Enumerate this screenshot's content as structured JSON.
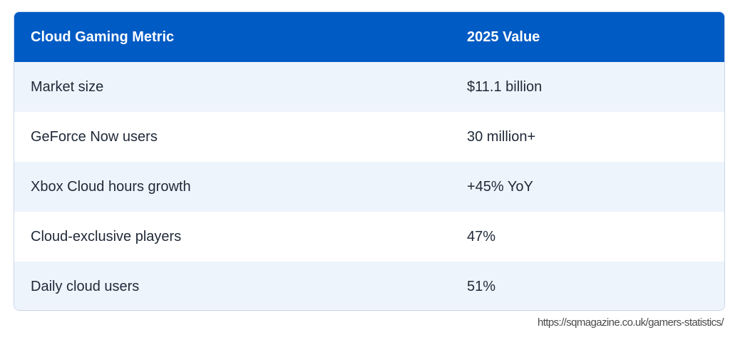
{
  "table": {
    "headers": {
      "metric": "Cloud Gaming Metric",
      "value": "2025 Value"
    },
    "rows": [
      {
        "metric": "Market size",
        "value": "$11.1 billion"
      },
      {
        "metric": "GeForce Now users",
        "value": "30 million+"
      },
      {
        "metric": "Xbox Cloud hours growth",
        "value": "+45% YoY"
      },
      {
        "metric": "Cloud-exclusive players",
        "value": "47%"
      },
      {
        "metric": "Daily cloud users",
        "value": "51%"
      }
    ]
  },
  "source_url": "https://sqmagazine.co.uk/gamers-statistics/",
  "colors": {
    "header_bg": "#005bc4",
    "alt_row_bg": "#eef4fc",
    "text": "#1f2937"
  }
}
